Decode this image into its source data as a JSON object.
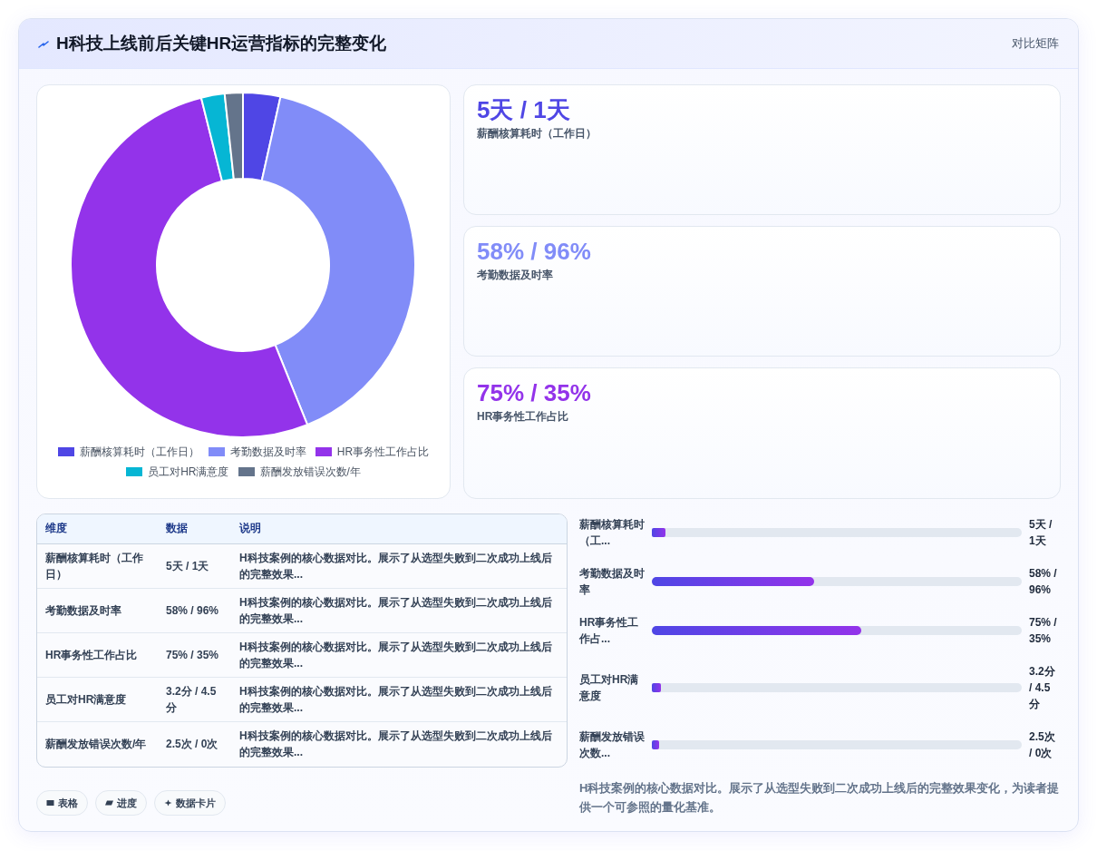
{
  "chart_data": [
    {
      "type": "other",
      "title": "H科技上线前后关键HR运营指标的完整变化",
      "subtitle": "对比矩阵"
    },
    {
      "type": "donut",
      "categories": [
        "薪酬核算耗时（工作日）",
        "考勤数据及时率",
        "HR事务性工作占比",
        "员工对HR满意度",
        "薪酬发放错误次数/年"
      ],
      "values": [
        3.5,
        40.4,
        52.2,
        2.2,
        1.7
      ],
      "colors": [
        "#4f46e5",
        "#818cf8",
        "#9333ea",
        "#06b6d4",
        "#64748b"
      ],
      "legend": "bottom"
    },
    {
      "type": "other",
      "title": "5天 / 1天",
      "subtitle": "薪酬核算耗时（工作日）"
    },
    {
      "type": "other",
      "title": "58% / 96%",
      "subtitle": "考勤数据及时率"
    },
    {
      "type": "other",
      "title": "75% / 35%",
      "subtitle": "HR事务性工作占比"
    },
    {
      "type": "other",
      "categories": [
        "维度",
        "数据",
        "说明"
      ],
      "annotations": [
        "薪酬核算耗时（工作日）",
        "5天 / 1天",
        "H科技案例的核心数据对比。展示了从选型失败到二次成功上线后的完整效果...",
        "考勤数据及时率",
        "58% / 96%",
        "H科技案例的核心数据对比。展示了从选型失败到二次成功上线后的完整效果...",
        "HR事务性工作占比",
        "75% / 35%",
        "H科技案例的核心数据对比。展示了从选型失败到二次成功上线后的完整效果...",
        "员工对HR满意度",
        "3.2分 / 4.5分",
        "H科技案例的核心数据对比。展示了从选型失败到二次成功上线后的完整效果...",
        "薪酬发放错误次数/年",
        "2.5次 / 0次",
        "H科技案例的核心数据对比。展示了从选型失败到二次成功上线后的完整效果..."
      ]
    },
    {
      "type": "bar",
      "orientation": "horizontal",
      "categories": [
        "薪酬核算耗时（工...",
        "考勤数据及时率",
        "HR事务性工作占...",
        "员工对HR满意度",
        "薪酬发放错误次数..."
      ],
      "values": [
        5,
        58,
        75,
        3.2,
        2.5
      ],
      "value_labels": [
        "5天 / 1天",
        "58% / 96%",
        "75% / 35%",
        "3.2分 / 4.5分",
        "2.5次 / 0次"
      ],
      "annotations": [
        "H科技案例的核心数据对比。展示了从选型失败到二次成功上线后的完整效果变化，为读者提供一个可参照的量化基准。"
      ]
    },
    {
      "type": "other",
      "annotations": [
        "表格",
        "进度",
        "数据卡片"
      ]
    }
  ]
}
